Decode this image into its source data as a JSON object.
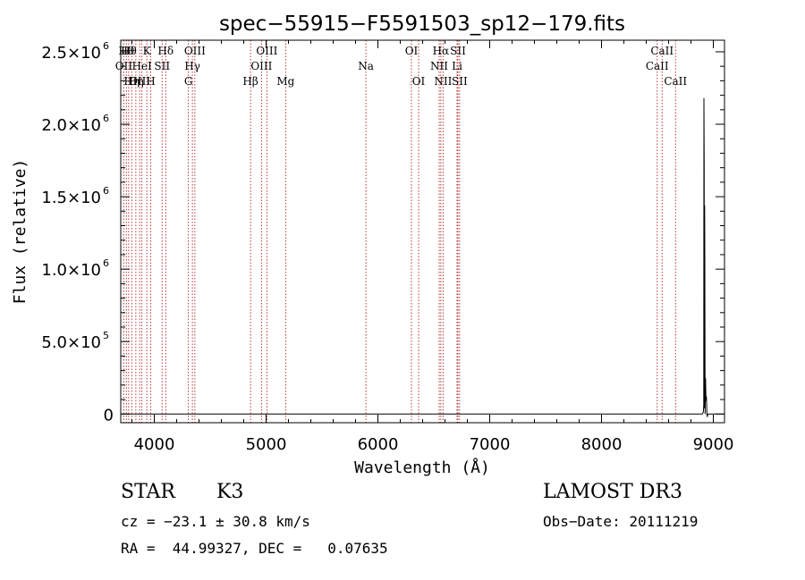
{
  "chart_data": {
    "type": "line",
    "title": "spec−55915−F5591503_sp12−179.fits",
    "xlabel": "Wavelength (Å)",
    "ylabel": "Flux (relative)",
    "xlim": [
      3700,
      9100
    ],
    "ylim": [
      -60000,
      2580000
    ],
    "x_ticks": [
      {
        "value": 4000,
        "label": "4000"
      },
      {
        "value": 5000,
        "label": "5000"
      },
      {
        "value": 6000,
        "label": "6000"
      },
      {
        "value": 7000,
        "label": "7000"
      },
      {
        "value": 8000,
        "label": "8000"
      },
      {
        "value": 9000,
        "label": "9000"
      }
    ],
    "y_ticks": [
      {
        "value": 0,
        "mant": "0",
        "exp": ""
      },
      {
        "value": 500000,
        "mant": "5.0×10",
        "exp": "5"
      },
      {
        "value": 1000000,
        "mant": "1.0×10",
        "exp": "6"
      },
      {
        "value": 1500000,
        "mant": "1.5×10",
        "exp": "6"
      },
      {
        "value": 2000000,
        "mant": "2.0×10",
        "exp": "6"
      },
      {
        "value": 2500000,
        "mant": "2.5×10",
        "exp": "6"
      }
    ],
    "grid": false,
    "series": [
      {
        "x": [
          3700,
          4500,
          5500,
          6500,
          7500,
          8500,
          8900,
          8910,
          8914,
          8916,
          8918,
          8920,
          8922,
          8924,
          8926,
          8930,
          8934,
          8938,
          8942,
          8946,
          8950,
          8960,
          9100
        ],
        "y": [
          0,
          0,
          0,
          0,
          0,
          0,
          0,
          12000,
          60000,
          2180000,
          1700000,
          40000,
          1440000,
          1080000,
          0,
          250000,
          90000,
          120000,
          0,
          -20000,
          0,
          0,
          0
        ]
      }
    ],
    "lines": [
      {
        "wave": 3727,
        "label": "OII",
        "row": 1
      },
      {
        "wave": 3750,
        "label": "Hθ",
        "row": 0
      },
      {
        "wave": 3771,
        "label": "Hθ",
        "row": 0
      },
      {
        "wave": 3798,
        "label": "Hη",
        "row": 2
      },
      {
        "wave": 3835,
        "label": "Hη",
        "row": 2
      },
      {
        "wave": 3869,
        "label": "OIII",
        "row": 2
      },
      {
        "wave": 3889,
        "label": "HeI",
        "row": 1
      },
      {
        "wave": 3933,
        "label": "K",
        "row": 0
      },
      {
        "wave": 3968,
        "label": "H",
        "row": 2
      },
      {
        "wave": 4070,
        "label": "SII",
        "row": 1
      },
      {
        "wave": 4102,
        "label": "Hδ",
        "row": 0
      },
      {
        "wave": 4305,
        "label": "G",
        "row": 2
      },
      {
        "wave": 4341,
        "label": "Hγ",
        "row": 1
      },
      {
        "wave": 4363,
        "label": "OIII",
        "row": 0
      },
      {
        "wave": 4861,
        "label": "Hβ",
        "row": 2
      },
      {
        "wave": 4959,
        "label": "OIII",
        "row": 1
      },
      {
        "wave": 5007,
        "label": "OIII",
        "row": 0
      },
      {
        "wave": 5175,
        "label": "Mg",
        "row": 2
      },
      {
        "wave": 5893,
        "label": "Na",
        "row": 1
      },
      {
        "wave": 6300,
        "label": "OI",
        "row": 0
      },
      {
        "wave": 6364,
        "label": "OI",
        "row": 2
      },
      {
        "wave": 6548,
        "label": "NII",
        "row": 1
      },
      {
        "wave": 6563,
        "label": "Hα",
        "row": 0
      },
      {
        "wave": 6583,
        "label": "NII",
        "row": 2
      },
      {
        "wave": 6708,
        "label": "Li",
        "row": 1
      },
      {
        "wave": 6716,
        "label": "SII",
        "row": 0
      },
      {
        "wave": 6731,
        "label": "SII",
        "row": 2
      },
      {
        "wave": 8498,
        "label": "CaII",
        "row": 1
      },
      {
        "wave": 8542,
        "label": "CaII",
        "row": 0
      },
      {
        "wave": 8662,
        "label": "CaII",
        "row": 2
      }
    ],
    "colors": {
      "frame": "#000000",
      "spectrum": "#000000",
      "lines": "#b22222"
    }
  },
  "info": {
    "class": "STAR",
    "subclass": "K3",
    "survey": "LAMOST DR3",
    "cz": "cz = −23.1 ± 30.8 km/s",
    "obs_date": "Obs−Date: 20111219",
    "coords": "RA =  44.99327, DEC =   0.07635"
  }
}
